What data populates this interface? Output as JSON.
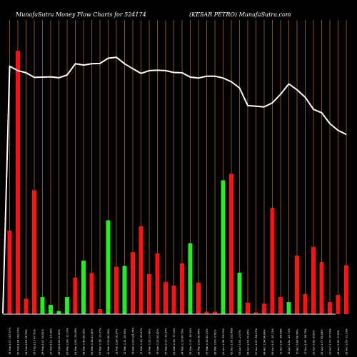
{
  "header": {
    "left_title": "MunafaSutra  Money Flow  Charts for 524174",
    "right_title": "(KESAR PETRO) MunafaSutra.com"
  },
  "colors": {
    "background": "#000000",
    "vertical_grid": "#a86a1a",
    "up_bar": "#22ee22",
    "down_bar": "#ff1111",
    "line": "#ffffff"
  },
  "chart_data": {
    "type": "bar",
    "description_units": "bars = relative money flow, line = relative price",
    "grid": true,
    "categories": [
      "18 Feb 2.07 297.37%",
      "20 Feb 2.28 303.09%",
      "24 Feb 2.29 96.75%",
      "25 Feb 2.17 47.70%",
      "26 Feb 2.00 94.91%",
      "27 Feb 2.11 -16.38%",
      "28 Feb 2.09 67.60%",
      "03 Mar 2.09 -11.19%",
      "04 Mar 2.06 -24.28%",
      "05 Mar 2.42 56.05%",
      "06 Mar 2.34 41.90%",
      "07 Mar 2.16 -13.37%",
      "10 Mar 2.21 66.26%",
      "11 Mar 2.28 18.97%",
      "12 Mar 2.11 26.93%",
      "13 Mar 2.03 141.78%",
      "17 Mar 2.19 -69.47%",
      "18 Mar 2.32 17.40%",
      "19 Mar 2.22 94.82%",
      "20 Mar 2.17 -72.37%",
      "21 Mar 2.19 -77.14%",
      "24 Mar 2.13 54.79%",
      "25 Mar 2.10 -34.34%",
      "26 Mar 2.09 38.64%",
      "27 Mar 2.10 69.13%",
      "28 Mar 2.09 -0.61%",
      "01 Apr 1.98 -55.02%",
      "02 Apr 1.95 102.86%",
      "03 Apr 1.93 -2.07%",
      "04 Apr 1.90 10.25%",
      "07 Apr 1.97 -56.67%",
      "08 Apr 1.94 64.93%",
      "09 Apr 1.91 -47.21%",
      "11 Apr 1.87 -64.88%",
      "15 Apr 1.81 -20.71%",
      "16 Apr 1.86 68.78%",
      "17 Apr 2.00 -44.76%",
      "21 Apr 1.82 -8.52%",
      "22 Apr 1.77 89.24%",
      "23 Apr 1.73 -37.92%",
      "24 Apr 1.69 -3.15%",
      "25 Apr 1.63 -21.09%"
    ],
    "bar_colors": [
      "red",
      "red",
      "red",
      "red",
      "green",
      "green",
      "green",
      "green",
      "red",
      "green",
      "red",
      "red",
      "green",
      "red",
      "green",
      "red",
      "red",
      "red",
      "red",
      "red",
      "red",
      "red",
      "green",
      "red",
      "red",
      "red",
      "green",
      "red",
      "green",
      "red",
      "red",
      "red",
      "red",
      "red",
      "green",
      "red",
      "red",
      "red",
      "red",
      "red",
      "red",
      "red"
    ],
    "bar_values": [
      0.27,
      0.85,
      0.05,
      0.4,
      0.055,
      0.03,
      0.01,
      0.055,
      0.118,
      0.173,
      0.133,
      0.016,
      0.303,
      0.153,
      0.156,
      0.2,
      0.284,
      0.129,
      0.196,
      0.104,
      0.092,
      0.164,
      0.229,
      0.102,
      0.008,
      0.008,
      0.432,
      0.453,
      0.134,
      0.037,
      0.006,
      0.034,
      0.343,
      0.055,
      0.039,
      0.189,
      0.065,
      0.217,
      0.168,
      0.039,
      0.062,
      0.158
    ],
    "line_values": [
      0.8,
      0.786,
      0.779,
      0.764,
      0.765,
      0.766,
      0.763,
      0.772,
      0.808,
      0.804,
      0.808,
      0.809,
      0.826,
      0.829,
      0.808,
      0.792,
      0.777,
      0.786,
      0.787,
      0.786,
      0.78,
      0.779,
      0.765,
      0.762,
      0.768,
      0.768,
      0.762,
      0.75,
      0.73,
      0.673,
      0.671,
      0.669,
      0.682,
      0.71,
      0.743,
      0.724,
      0.7,
      0.661,
      0.65,
      0.615,
      0.593,
      0.58
    ],
    "ylim": [
      0,
      1
    ]
  }
}
